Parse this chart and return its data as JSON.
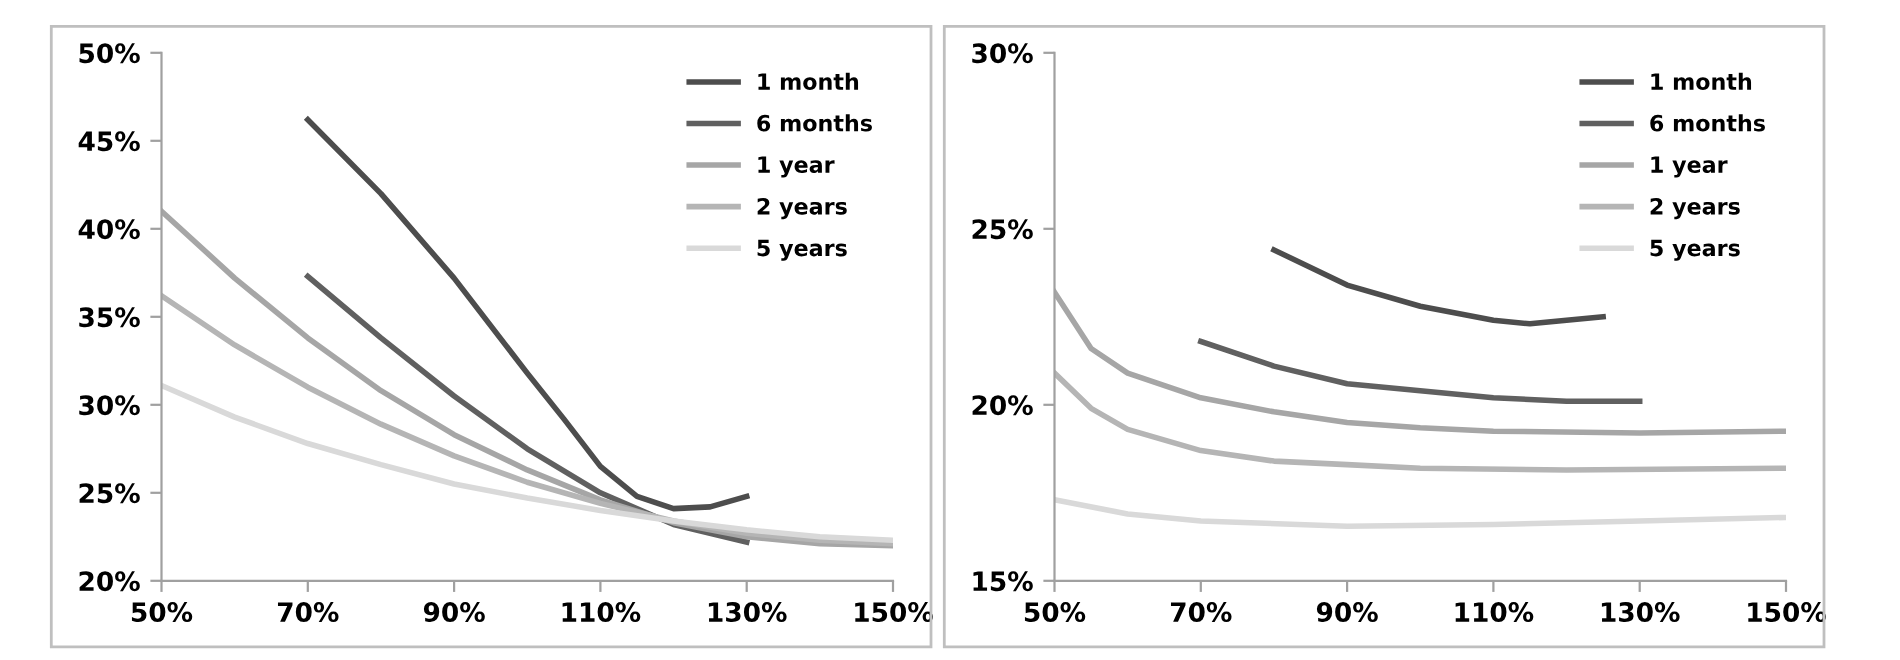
{
  "chart_data": [
    {
      "type": "line",
      "xlim": [
        50,
        150
      ],
      "ylim": [
        20,
        50
      ],
      "xticks": [
        {
          "value": 50,
          "label": "50%"
        },
        {
          "value": 70,
          "label": "70%"
        },
        {
          "value": 90,
          "label": "90%"
        },
        {
          "value": 110,
          "label": "110%"
        },
        {
          "value": 130,
          "label": "130%"
        },
        {
          "value": 150,
          "label": "150%"
        }
      ],
      "yticks": [
        {
          "value": 20,
          "label": "20%"
        },
        {
          "value": 25,
          "label": "25%"
        },
        {
          "value": 30,
          "label": "30%"
        },
        {
          "value": 35,
          "label": "35%"
        },
        {
          "value": 40,
          "label": "40%"
        },
        {
          "value": 45,
          "label": "45%"
        },
        {
          "value": 50,
          "label": "50%"
        }
      ],
      "grid": false,
      "legend": "top right",
      "series": [
        {
          "name": "1 month",
          "color": "#4d4d4d",
          "x": [
            70,
            80,
            90,
            100,
            105,
            110,
            115,
            120,
            125,
            130
          ],
          "values": [
            46.2,
            42.0,
            37.2,
            31.8,
            29.2,
            26.5,
            24.8,
            24.1,
            24.2,
            24.8
          ]
        },
        {
          "name": "6 months",
          "color": "#606060",
          "x": [
            70,
            80,
            90,
            100,
            110,
            120,
            130
          ],
          "values": [
            37.3,
            33.8,
            30.5,
            27.5,
            25.0,
            23.2,
            22.2
          ]
        },
        {
          "name": "1 year",
          "color": "#a6a6a6",
          "x": [
            50,
            60,
            70,
            80,
            90,
            100,
            110,
            120,
            130,
            140,
            150
          ],
          "values": [
            41.0,
            37.2,
            33.8,
            30.8,
            28.3,
            26.3,
            24.6,
            23.3,
            22.5,
            22.1,
            22.0
          ]
        },
        {
          "name": "2 years",
          "color": "#b5b5b5",
          "x": [
            50,
            60,
            70,
            80,
            90,
            100,
            110,
            120,
            130,
            140,
            150
          ],
          "values": [
            36.2,
            33.4,
            31.0,
            28.9,
            27.1,
            25.6,
            24.4,
            23.4,
            22.7,
            22.3,
            22.1
          ]
        },
        {
          "name": "5 years",
          "color": "#d9d9d9",
          "x": [
            50,
            60,
            70,
            80,
            90,
            100,
            110,
            120,
            130,
            140,
            150
          ],
          "values": [
            31.1,
            29.3,
            27.8,
            26.6,
            25.5,
            24.7,
            24.0,
            23.4,
            22.9,
            22.5,
            22.3
          ]
        }
      ]
    },
    {
      "type": "line",
      "xlim": [
        50,
        150
      ],
      "ylim": [
        15,
        30
      ],
      "xticks": [
        {
          "value": 50,
          "label": "50%"
        },
        {
          "value": 70,
          "label": "70%"
        },
        {
          "value": 90,
          "label": "90%"
        },
        {
          "value": 110,
          "label": "110%"
        },
        {
          "value": 130,
          "label": "130%"
        },
        {
          "value": 150,
          "label": "150%"
        }
      ],
      "yticks": [
        {
          "value": 15,
          "label": "15%"
        },
        {
          "value": 20,
          "label": "20%"
        },
        {
          "value": 25,
          "label": "25%"
        },
        {
          "value": 30,
          "label": "30%"
        }
      ],
      "grid": false,
      "legend": "top right",
      "series": [
        {
          "name": "1 month",
          "color": "#4d4d4d",
          "x": [
            80,
            90,
            100,
            110,
            115,
            120,
            125
          ],
          "values": [
            24.4,
            23.4,
            22.8,
            22.4,
            22.3,
            22.4,
            22.5
          ]
        },
        {
          "name": "6 months",
          "color": "#606060",
          "x": [
            70,
            80,
            90,
            100,
            110,
            120,
            130
          ],
          "values": [
            21.8,
            21.1,
            20.6,
            20.4,
            20.2,
            20.1,
            20.1
          ]
        },
        {
          "name": "1 year",
          "color": "#a6a6a6",
          "x": [
            50,
            55,
            60,
            70,
            80,
            90,
            100,
            110,
            130,
            150
          ],
          "values": [
            23.2,
            21.6,
            20.9,
            20.2,
            19.8,
            19.5,
            19.35,
            19.25,
            19.2,
            19.25
          ]
        },
        {
          "name": "2 years",
          "color": "#b5b5b5",
          "x": [
            50,
            55,
            60,
            70,
            80,
            90,
            100,
            120,
            150
          ],
          "values": [
            20.9,
            19.9,
            19.3,
            18.7,
            18.4,
            18.3,
            18.2,
            18.15,
            18.2
          ]
        },
        {
          "name": "5 years",
          "color": "#d9d9d9",
          "x": [
            50,
            60,
            70,
            90,
            110,
            130,
            150
          ],
          "values": [
            17.3,
            16.9,
            16.7,
            16.55,
            16.6,
            16.7,
            16.8
          ]
        }
      ]
    }
  ]
}
